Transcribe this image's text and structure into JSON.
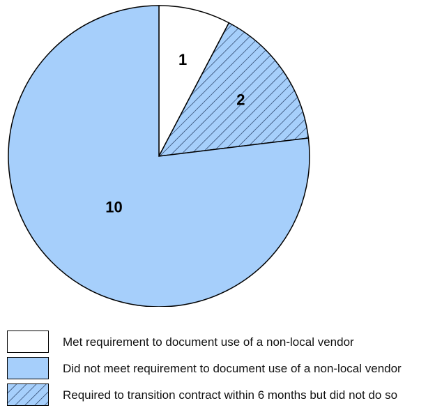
{
  "chart_data": {
    "type": "pie",
    "slices": [
      {
        "label": "1",
        "value": 1,
        "legend": "Met requirement to document use of a non-local vendor",
        "color": "#ffffff",
        "pattern": "none"
      },
      {
        "label": "2",
        "value": 2,
        "legend": "Required to transition contract within 6 months but did not do so",
        "color": "#a6cffb",
        "pattern": "diagonal-hatch"
      },
      {
        "label": "10",
        "value": 10,
        "legend": "Did not meet requirement to document use of a non-local vendor",
        "color": "#a6cffb",
        "pattern": "none"
      }
    ],
    "legend_order": [
      0,
      2,
      1
    ],
    "legend_position": "bottom",
    "outline_color": "#000000"
  }
}
